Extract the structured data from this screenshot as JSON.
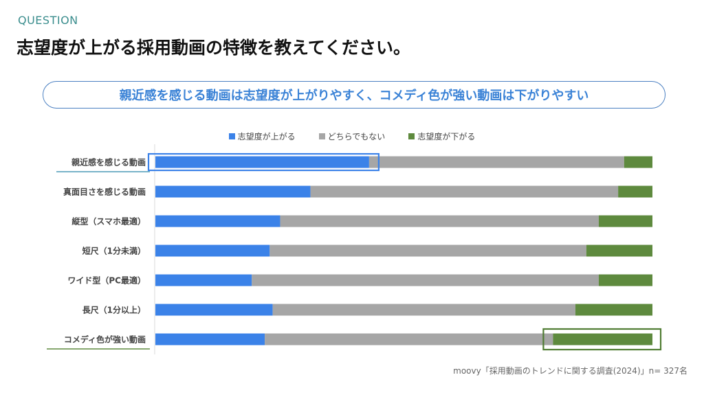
{
  "header": {
    "section_label": "QUESTION",
    "title": "志望度が上がる採用動画の特徴を教えてください。"
  },
  "callout": {
    "text": "親近感を感じる動画は志望度が上がりやすく、コメディ色が強い動画は下がりやすい"
  },
  "source": "moovy「採用動画のトレンドに関する調査(2024)」n= 327名",
  "colors": {
    "up": "#3b82e8",
    "neutral": "#a6a6a6",
    "down": "#5e8a3e",
    "highlight_blue": "#3b82e8",
    "highlight_green": "#4f7c33"
  },
  "chart_data": {
    "type": "bar",
    "orientation": "horizontal",
    "stacked": "100%",
    "legend_position": "top",
    "categories": [
      "親近感を感じる動画",
      "真面目さを感じる動画",
      "縦型（スマホ最適）",
      "短尺（1分未満）",
      "ワイド型（PC最適）",
      "長尺（1分以上）",
      "コメディ色が強い動画"
    ],
    "series": [
      {
        "name": "志望度が上がる",
        "values": [
          43.0,
          31.2,
          25.1,
          23.0,
          19.4,
          23.6,
          22.0
        ]
      },
      {
        "name": "どちらでもない",
        "values": [
          51.3,
          61.9,
          64.1,
          63.7,
          69.8,
          60.9,
          58.0
        ]
      },
      {
        "name": "志望度が下がる",
        "values": [
          5.7,
          6.9,
          10.8,
          13.3,
          10.8,
          15.5,
          20.0
        ]
      }
    ],
    "xlim": [
      0,
      100
    ],
    "highlighted": [
      {
        "category": "親近感を感じる動画",
        "series": "志望度が上がる"
      },
      {
        "category": "コメディ色が強い動画",
        "series": "志望度が下がる"
      }
    ]
  }
}
